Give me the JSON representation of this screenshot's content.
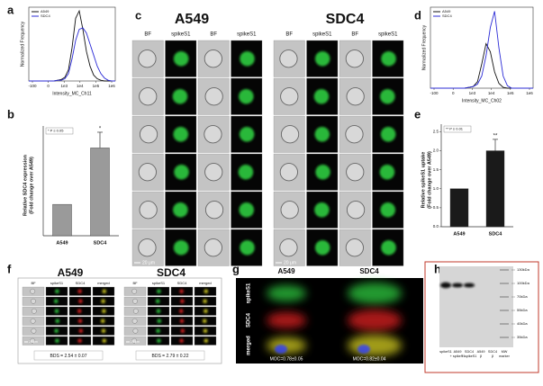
{
  "panels": [
    {
      "label": "a",
      "type": "line",
      "xlabel": "Intensity_MC_Ch11",
      "ylabel": "Normalized Frequency",
      "xtick_labels": [
        "-100",
        "0",
        "1e3",
        "1e4",
        "1e5",
        "1e6"
      ],
      "ylim": [
        0,
        1
      ],
      "series": [
        {
          "name": "A549",
          "color": "#111111",
          "values": [
            0,
            0,
            0,
            0,
            0,
            0,
            0,
            0,
            0.01,
            0.02,
            0.05,
            0.15,
            0.45,
            0.85,
            0.95,
            0.7,
            0.4,
            0.2,
            0.08,
            0.03,
            0.01,
            0,
            0,
            0,
            0
          ]
        },
        {
          "name": "SDC4",
          "color": "#2b2bd6",
          "values": [
            0,
            0,
            0,
            0,
            0,
            0,
            0,
            0,
            0.01,
            0.01,
            0.03,
            0.1,
            0.3,
            0.55,
            0.7,
            0.72,
            0.65,
            0.5,
            0.35,
            0.2,
            0.1,
            0.04,
            0.01,
            0,
            0
          ]
        }
      ]
    },
    {
      "label": "b",
      "type": "bar",
      "ylabel": [
        "Relative SDC4 expression",
        "(Fold change over A549)"
      ],
      "legend": "* P ≤ 0.05",
      "categories": [
        "A549",
        "SDC4"
      ],
      "values": [
        1,
        2.8
      ],
      "errors": [
        null,
        0.5
      ],
      "annotations": [
        null,
        "*"
      ],
      "color": "#9a9a9a",
      "ylim": [
        0,
        3.5
      ]
    },
    {
      "label": "c",
      "type": "image-grid",
      "groups": [
        {
          "title": "A549",
          "columns": [
            "BF",
            "spikeS1",
            "BF",
            "spikeS1"
          ],
          "column_colors": [
            "#bdbdbd",
            "#2ecc40",
            "#bdbdbd",
            "#2ecc40"
          ],
          "scale": "20 μm"
        },
        {
          "title": "SDC4",
          "columns": [
            "BF",
            "spikeS1",
            "BF",
            "spikeS1"
          ],
          "column_colors": [
            "#bdbdbd",
            "#2ecc40",
            "#bdbdbd",
            "#2ecc40"
          ],
          "scale": "20 μm"
        }
      ]
    },
    {
      "label": "d",
      "type": "line",
      "xlabel": "Intensity_MC_Ch02",
      "ylabel": "Normalized Frequency",
      "xtick_labels": [
        "-100",
        "0",
        "1e3",
        "1e4",
        "1e5",
        "1e6"
      ],
      "ylim": [
        0,
        1
      ],
      "series": [
        {
          "name": "A549",
          "color": "#111111",
          "values": [
            0,
            0,
            0,
            0,
            0,
            0,
            0,
            0,
            0,
            0.01,
            0.02,
            0.08,
            0.3,
            0.55,
            0.45,
            0.2,
            0.06,
            0.01,
            0,
            0,
            0,
            0,
            0,
            0,
            0
          ]
        },
        {
          "name": "SDC4",
          "color": "#2b2bd6",
          "values": [
            0,
            0,
            0,
            0,
            0,
            0,
            0,
            0,
            0,
            0.01,
            0.02,
            0.05,
            0.15,
            0.4,
            0.75,
            0.95,
            0.5,
            0.15,
            0.03,
            0,
            0,
            0,
            0,
            0,
            0
          ]
        }
      ]
    },
    {
      "label": "e",
      "type": "bar",
      "ylabel": [
        "Relative spikeS1 uptake",
        "(Fold change over A549)"
      ],
      "legend": "** P ≤ 0.01",
      "categories": [
        "A549",
        "SDC4"
      ],
      "values": [
        1,
        2.0
      ],
      "errors": [
        null,
        0.3
      ],
      "annotations": [
        null,
        "**"
      ],
      "color": "#1a1a1a",
      "ylim": [
        0,
        2.7
      ],
      "yticks": [
        {
          "value": 0,
          "label": "0.0"
        },
        {
          "value": 0.5,
          "label": "0.5"
        },
        {
          "value": 1,
          "label": "1.0"
        },
        {
          "value": 1.5,
          "label": "1.5"
        },
        {
          "value": 2,
          "label": "2.0"
        },
        {
          "value": 2.5,
          "label": "2.5"
        }
      ]
    },
    {
      "label": "f",
      "type": "image-grid",
      "groups": [
        {
          "title": "A549",
          "columns": [
            "BF",
            "spikeS1",
            "SDC4",
            "merged"
          ],
          "column_colors": [
            "#bdbdbd",
            "#2ecc40",
            "#e02020",
            "#d8d020"
          ],
          "scale": "20 μm",
          "note": "BDS = 2.54 ± 0.07"
        },
        {
          "title": "SDC4",
          "columns": [
            "BF",
            "spikeS1",
            "SDC4",
            "merged"
          ],
          "column_colors": [
            "#bdbdbd",
            "#2ecc40",
            "#e02020",
            "#d8d020"
          ],
          "scale": "20 μm",
          "note": "BDS = 2.79 ± 0.22"
        }
      ]
    },
    {
      "label": "g",
      "type": "microscopy",
      "columns": [
        "A549",
        "SDC4"
      ],
      "rows": [
        "spikeS1",
        "SDC4",
        "merged"
      ],
      "row_colors": [
        "#2ecc40",
        "#e02020",
        "#d8d020"
      ],
      "notes": [
        "MOC=0.78±0.05",
        "MOC=0.82±0.04"
      ]
    },
    {
      "label": "h",
      "type": "blot",
      "markers": [
        "130kDa",
        "100kDa",
        "70kDa",
        "55kDa",
        "40kDa",
        "35kDa"
      ],
      "lanes": [
        [
          "spikeS1"
        ],
        [
          "A549",
          "+ spikeS1"
        ],
        [
          "SDC4",
          "+ spikeS1"
        ],
        [
          "A549",
          "β"
        ],
        [
          "SDC4",
          "β"
        ],
        [
          "MW",
          "marker"
        ]
      ]
    }
  ]
}
